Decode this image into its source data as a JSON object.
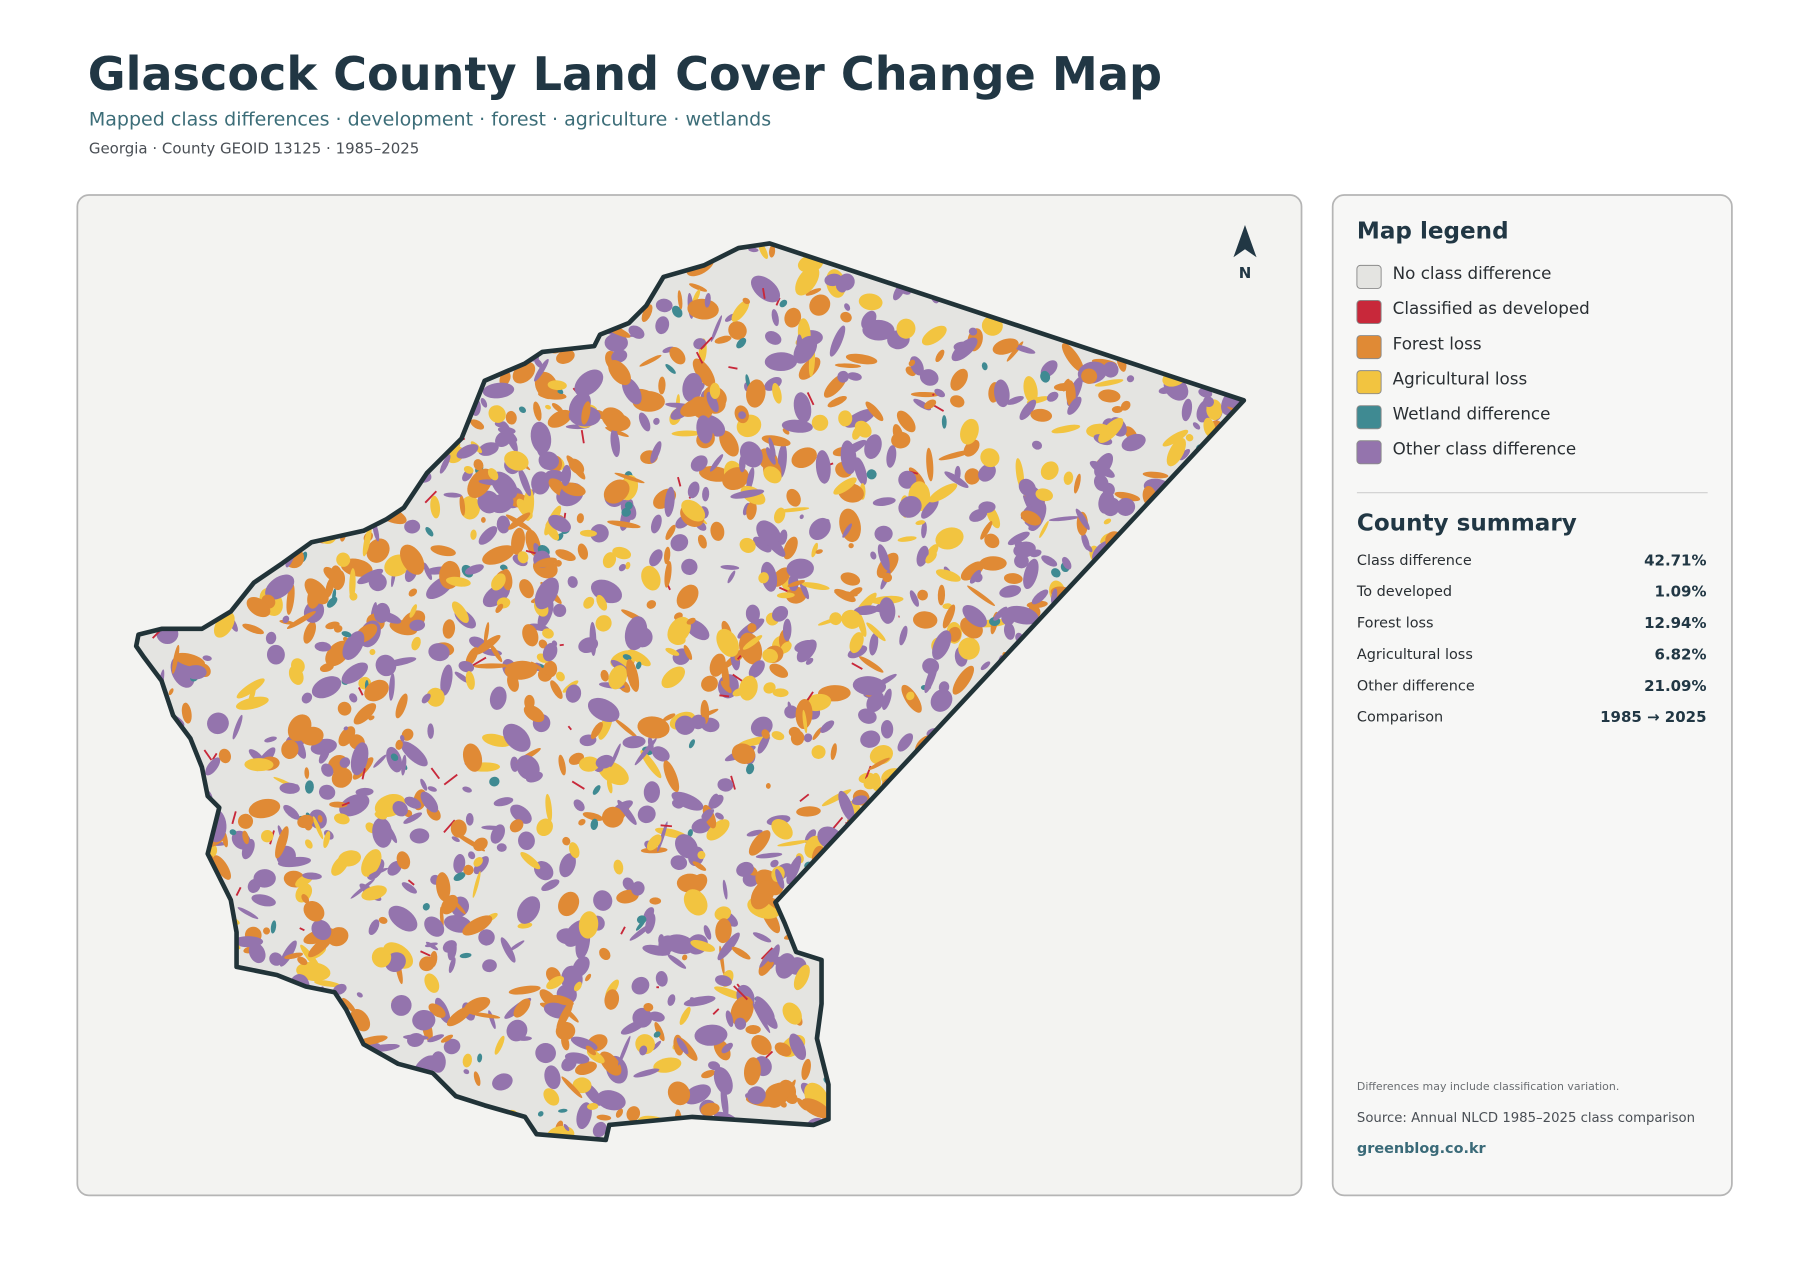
{
  "header": {
    "title": "Glascock County Land Cover Change Map",
    "subtitle": "Mapped class differences · development · forest · agriculture · wetlands",
    "meta": "Georgia · County GEOID 13125 · 1985–2025"
  },
  "map": {
    "north_label": "N"
  },
  "legend": {
    "title": "Map legend",
    "items": [
      {
        "label": "No class difference",
        "color": "#e4e4e1"
      },
      {
        "label": "Classified as developed",
        "color": "#c8283a"
      },
      {
        "label": "Forest loss",
        "color": "#e08a35"
      },
      {
        "label": "Agricultural loss",
        "color": "#f2c440"
      },
      {
        "label": "Wetland difference",
        "color": "#3f8a92"
      },
      {
        "label": "Other class difference",
        "color": "#9474ad"
      }
    ]
  },
  "summary": {
    "title": "County summary",
    "rows": [
      [
        "Class difference",
        "42.71%"
      ],
      [
        "To developed",
        "1.09%"
      ],
      [
        "Forest loss",
        "12.94%"
      ],
      [
        "Agricultural loss",
        "6.82%"
      ],
      [
        "Other difference",
        "21.09%"
      ],
      [
        "Comparison",
        "1985 → 2025"
      ]
    ]
  },
  "footer": {
    "note": "Differences may include classification variation.",
    "source": "Source: Annual NLCD 1985–2025 class comparison",
    "site": "greenblog.co.kr"
  }
}
